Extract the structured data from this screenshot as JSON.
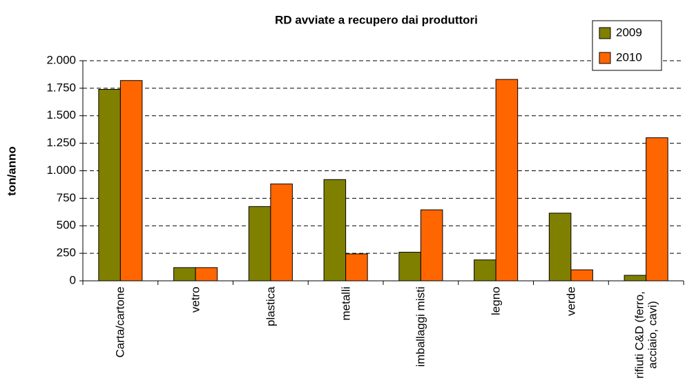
{
  "chart_data": {
    "type": "bar",
    "title": "RD avviate a recupero dai produttori",
    "y_label": "ton/anno",
    "categories": [
      "Carta/cartone",
      "vetro",
      "plastica",
      "metalli",
      "imballaggi misti",
      "legno",
      "verde",
      "rifiuti C&D (ferro, acciaio, cavi)"
    ],
    "series": [
      {
        "name": "2009",
        "color": "#808000",
        "values": [
          1740,
          120,
          675,
          920,
          260,
          190,
          615,
          50
        ]
      },
      {
        "name": "2010",
        "color": "#ff6600",
        "values": [
          1820,
          120,
          880,
          245,
          645,
          1830,
          100,
          1300
        ]
      }
    ],
    "ylim": [
      0,
      2000
    ],
    "yticks": [
      0,
      250,
      500,
      750,
      {
        "value": 1000,
        "label": "1.000"
      },
      {
        "value": 1250,
        "label": "1.250"
      },
      {
        "value": 1500,
        "label": "1.500"
      },
      {
        "value": 1750,
        "label": "1.750"
      },
      {
        "value": 2000,
        "label": "2.000"
      }
    ],
    "grid": true,
    "legend": "top-right"
  }
}
